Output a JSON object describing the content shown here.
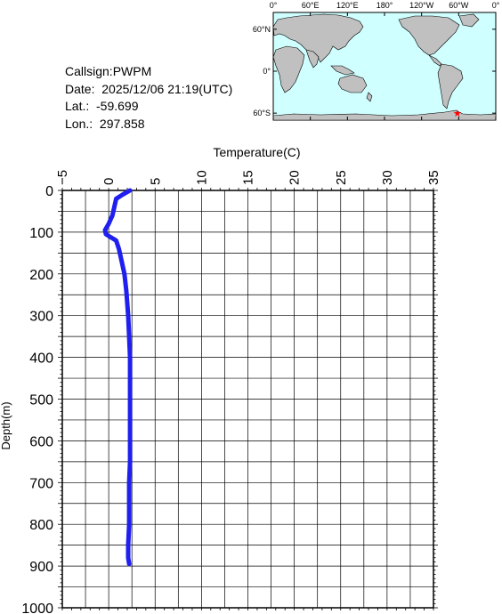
{
  "station": {
    "callsign_line": "Callsign:PWPM",
    "date_line": "Date:  2025/12/06 21:19(UTC)",
    "lat_line": "Lat.:  -59.699",
    "lon_line": "Lon.:  297.858"
  },
  "map": {
    "lon_labels": [
      "0°",
      "60°E",
      "120°E",
      "180°",
      "120°W",
      "60°W",
      "0°"
    ],
    "lat_labels": [
      "60°N",
      "0°",
      "60°S"
    ],
    "ocean_color": "#cfffff",
    "land_color": "#c0c0c0",
    "marker_color": "#ff0000",
    "marker_lat": -59.699,
    "marker_lon": 297.858
  },
  "chart_data": {
    "type": "line",
    "title": "",
    "xlabel": "Temperature(C)",
    "ylabel": "Depth(m)",
    "xlim": [
      -5,
      35
    ],
    "ylim": [
      1000,
      0
    ],
    "x_ticks": [
      "-5",
      "0",
      "5",
      "10",
      "15",
      "20",
      "25",
      "30",
      "35"
    ],
    "y_ticks": [
      "0",
      "100",
      "200",
      "300",
      "400",
      "500",
      "600",
      "700",
      "800",
      "900",
      "1000"
    ],
    "grid": true,
    "line_color": "#1f1fef",
    "series": [
      {
        "points": [
          [
            2.3,
            0
          ],
          [
            1.5,
            10
          ],
          [
            0.8,
            20
          ],
          [
            0.6,
            40
          ],
          [
            0.4,
            60
          ],
          [
            0.0,
            80
          ],
          [
            -0.4,
            95
          ],
          [
            -0.3,
            105
          ],
          [
            0.2,
            112
          ],
          [
            0.8,
            120
          ],
          [
            1.1,
            140
          ],
          [
            1.4,
            170
          ],
          [
            1.7,
            200
          ],
          [
            1.9,
            240
          ],
          [
            2.1,
            300
          ],
          [
            2.2,
            350
          ],
          [
            2.3,
            400
          ],
          [
            2.3,
            450
          ],
          [
            2.3,
            500
          ],
          [
            2.3,
            550
          ],
          [
            2.3,
            600
          ],
          [
            2.3,
            650
          ],
          [
            2.2,
            700
          ],
          [
            2.2,
            750
          ],
          [
            2.2,
            800
          ],
          [
            2.1,
            850
          ],
          [
            2.1,
            880
          ],
          [
            2.2,
            895
          ]
        ]
      }
    ]
  }
}
